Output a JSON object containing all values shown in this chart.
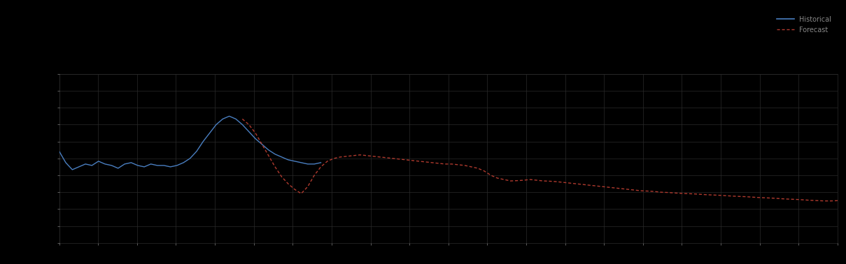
{
  "background_color": "#000000",
  "plot_bg_color": "#000000",
  "grid_color": "#2a2a2a",
  "blue_line_color": "#4a7fc1",
  "red_line_color": "#b03a2e",
  "text_color": "#888888",
  "figsize": [
    12.09,
    3.78
  ],
  "dpi": 100,
  "xlim": [
    0,
    119
  ],
  "ylim": [
    0,
    12
  ],
  "legend_labels": [
    "Historical",
    "Forecast"
  ],
  "blue_y": [
    6.5,
    5.7,
    5.2,
    5.4,
    5.6,
    5.5,
    5.8,
    5.6,
    5.5,
    5.3,
    5.6,
    5.7,
    5.5,
    5.4,
    5.6,
    5.5,
    5.5,
    5.4,
    5.5,
    5.7,
    6.0,
    6.5,
    7.2,
    7.8,
    8.4,
    8.8,
    9.0,
    8.8,
    8.4,
    7.9,
    7.4,
    7.0,
    6.6,
    6.3,
    6.1,
    5.9,
    5.8,
    5.7,
    5.6,
    5.6,
    5.7
  ],
  "red_y_start": 28,
  "red_y": [
    8.8,
    8.4,
    7.8,
    7.0,
    6.2,
    5.4,
    4.7,
    4.2,
    3.8,
    3.5,
    4.0,
    4.8,
    5.4,
    5.8,
    6.0,
    6.1,
    6.15,
    6.2,
    6.25,
    6.2,
    6.15,
    6.1,
    6.05,
    6.0,
    5.95,
    5.9,
    5.85,
    5.8,
    5.75,
    5.7,
    5.65,
    5.6,
    5.6,
    5.55,
    5.5,
    5.4,
    5.3,
    5.1,
    4.8,
    4.6,
    4.5,
    4.4,
    4.42,
    4.45,
    4.5,
    4.45,
    4.4,
    4.38,
    4.35,
    4.3,
    4.25,
    4.2,
    4.15,
    4.1,
    4.05,
    4.0,
    3.95,
    3.9,
    3.85,
    3.8,
    3.75,
    3.7,
    3.68,
    3.65,
    3.6,
    3.58,
    3.55,
    3.52,
    3.5,
    3.48,
    3.45,
    3.42,
    3.4,
    3.38,
    3.35,
    3.32,
    3.3,
    3.28,
    3.25,
    3.22,
    3.2,
    3.18,
    3.15,
    3.12,
    3.1,
    3.08,
    3.05,
    3.02,
    3.0,
    2.98,
    2.98,
    3.0,
    3.0
  ]
}
